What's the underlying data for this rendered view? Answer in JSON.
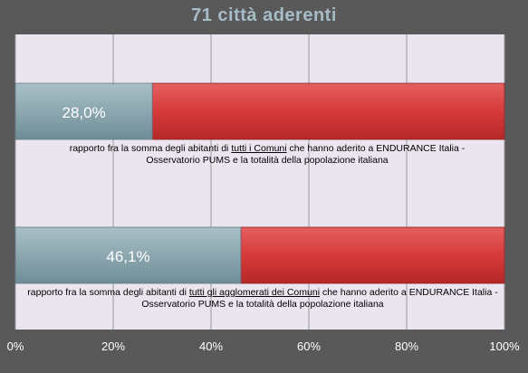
{
  "title": "71 città aderenti",
  "chart_data": {
    "type": "bar",
    "orientation": "horizontal",
    "stacked": true,
    "xlim": [
      0,
      100
    ],
    "x_ticks": [
      "0%",
      "20%",
      "40%",
      "60%",
      "80%",
      "100%"
    ],
    "grid": true,
    "colors": {
      "value": "#8ca7b0",
      "remainder": "#d63a3a",
      "plot_bg": "#ebe5ef"
    },
    "bars": [
      {
        "value": 28.0,
        "remainder": 72.0,
        "label": "28,0%",
        "annotation_before": "rapporto fra la somma degli abitanti di ",
        "annotation_underlined": "tutti i Comuni",
        "annotation_after": " che hanno aderito a ENDURANCE Italia - Osservatorio PUMS e la totalità della popolazione italiana"
      },
      {
        "value": 46.1,
        "remainder": 53.9,
        "label": "46,1%",
        "annotation_before": "rapporto fra la somma degli abitanti di ",
        "annotation_underlined": "tutti gli agglomerati dei Comuni",
        "annotation_after": " che hanno aderito a ENDURANCE Italia - Osservatorio PUMS e la totalità della popolazione italiana"
      }
    ]
  }
}
